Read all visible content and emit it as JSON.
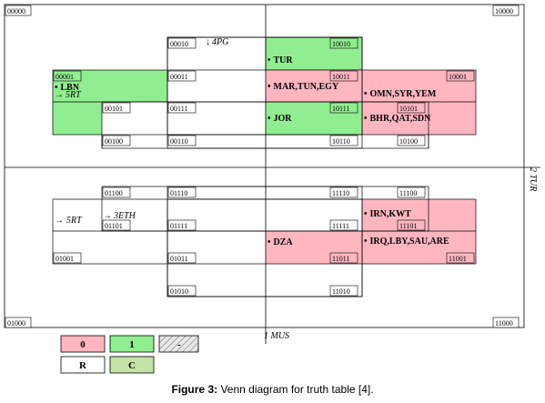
{
  "corners": {
    "tl": "00000",
    "tr": "10000",
    "bl": "01000",
    "br": "11000"
  },
  "axes": {
    "top": "4PG",
    "left_top": "5RT",
    "left_mid_a": "5RT",
    "left_mid_b": "3ETH",
    "right": "2 TUR",
    "bottom": "1 MUS"
  },
  "cells": [
    {
      "code": "00010"
    },
    {
      "code": "10010"
    },
    {
      "code": "00001"
    },
    {
      "code": "00011"
    },
    {
      "code": "10011"
    },
    {
      "code": "10001"
    },
    {
      "code": "00101"
    },
    {
      "code": "00111"
    },
    {
      "code": "10111"
    },
    {
      "code": "10101"
    },
    {
      "code": "00100"
    },
    {
      "code": "00110"
    },
    {
      "code": "10110"
    },
    {
      "code": "10100"
    },
    {
      "code": "01100"
    },
    {
      "code": "01110"
    },
    {
      "code": "11110"
    },
    {
      "code": "11100"
    },
    {
      "code": "01101"
    },
    {
      "code": "01111"
    },
    {
      "code": "11111"
    },
    {
      "code": "11101"
    },
    {
      "code": "01001"
    },
    {
      "code": "01011"
    },
    {
      "code": "11011"
    },
    {
      "code": "11001"
    },
    {
      "code": "01010"
    },
    {
      "code": "11010"
    }
  ],
  "labels": {
    "tur": "TUR",
    "lbn": "LBN",
    "mar": "MAR,TUN,EGY",
    "omn": "OMN,SYR,YEM",
    "jor": "JOR",
    "bhr": "BHR,QAT,SDN",
    "irn": "IRN,KWT",
    "dza": "DZA",
    "irq": "IRQ,LBY,SAU,ARE"
  },
  "legend": {
    "zero": "0",
    "one": "1",
    "dash": "-",
    "r": "R",
    "c": "C",
    "colors": {
      "zero": "#ffb6c1",
      "one": "#90ee90",
      "dash": "#e0e0e0",
      "c": "#c4e3a6"
    }
  },
  "caption": {
    "figure": "Figure 3:",
    "text": " Venn diagram for truth table [4]."
  }
}
